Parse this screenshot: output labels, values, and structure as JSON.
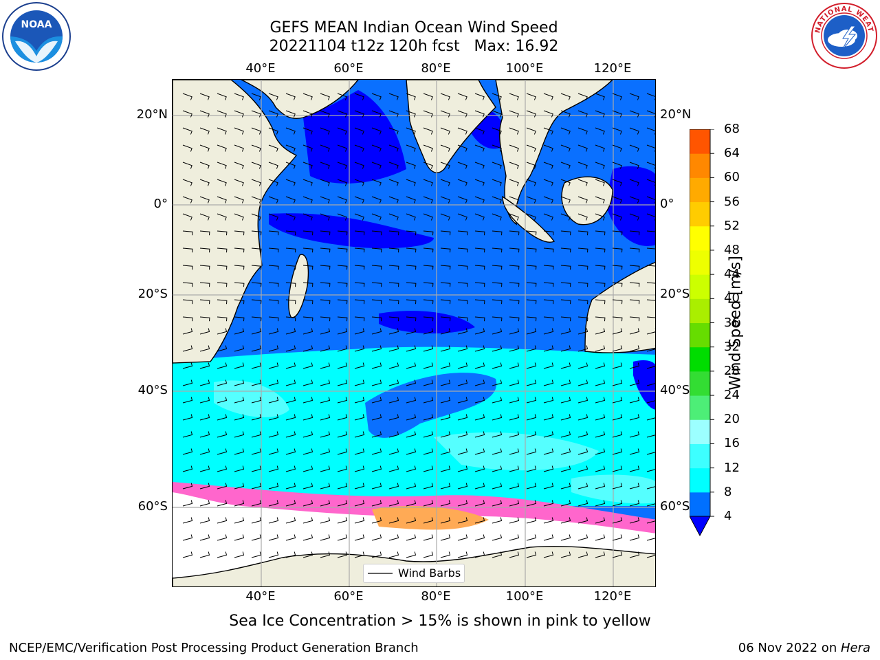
{
  "header": {
    "title_line1": "GEFS MEAN Indian Ocean Wind Speed",
    "title_line2": "20221104 t12z 120h fcst   Max: 16.92"
  },
  "logos": {
    "left": {
      "name": "noaa-logo",
      "text": "NOAA",
      "ring_text": "NATIONAL OCEANIC AND ATMOSPHERIC ADMINISTRATION · U.S. DEPARTMENT OF COMMERCE"
    },
    "right": {
      "name": "nws-logo",
      "ring_text": "NATIONAL WEATHER SERVICE"
    }
  },
  "map": {
    "lon_labels": [
      "40°E",
      "60°E",
      "80°E",
      "100°E",
      "120°E"
    ],
    "lat_labels": [
      "20°N",
      "0°",
      "20°S",
      "40°S",
      "60°S"
    ],
    "legend_label": "Wind Barbs",
    "colors": {
      "land": "#efeedd",
      "ocean_4_8": "#0000ff",
      "ocean_8_12": "#0a70ff",
      "ocean_12_16": "#00ffff",
      "ocean_16_20": "#55ffff",
      "ice": "#ff66cc",
      "ice_hi": "#ffaa55"
    }
  },
  "colorbar": {
    "title": "Wind Speed [m/s]",
    "ticks": [
      "4",
      "8",
      "12",
      "16",
      "20",
      "24",
      "28",
      "32",
      "36",
      "40",
      "44",
      "48",
      "52",
      "56",
      "60",
      "64",
      "68"
    ],
    "colors": [
      "#0070ff",
      "#00ffff",
      "#3dffff",
      "#9cffff",
      "#4dee77",
      "#33dd33",
      "#00dd00",
      "#66dd00",
      "#aaee00",
      "#ccff00",
      "#eeff00",
      "#ffff00",
      "#ffcc00",
      "#ffaa00",
      "#ff8800",
      "#ff5500",
      "#ff2200"
    ],
    "extend_color": "#0000ff"
  },
  "caption": "Sea Ice Concentration > 15% is shown in pink to yellow",
  "footer": {
    "left": "NCEP/EMC/Verification Post Processing Product Generation Branch",
    "right_date": "06 Nov 2022 on ",
    "right_host": "Hera"
  }
}
